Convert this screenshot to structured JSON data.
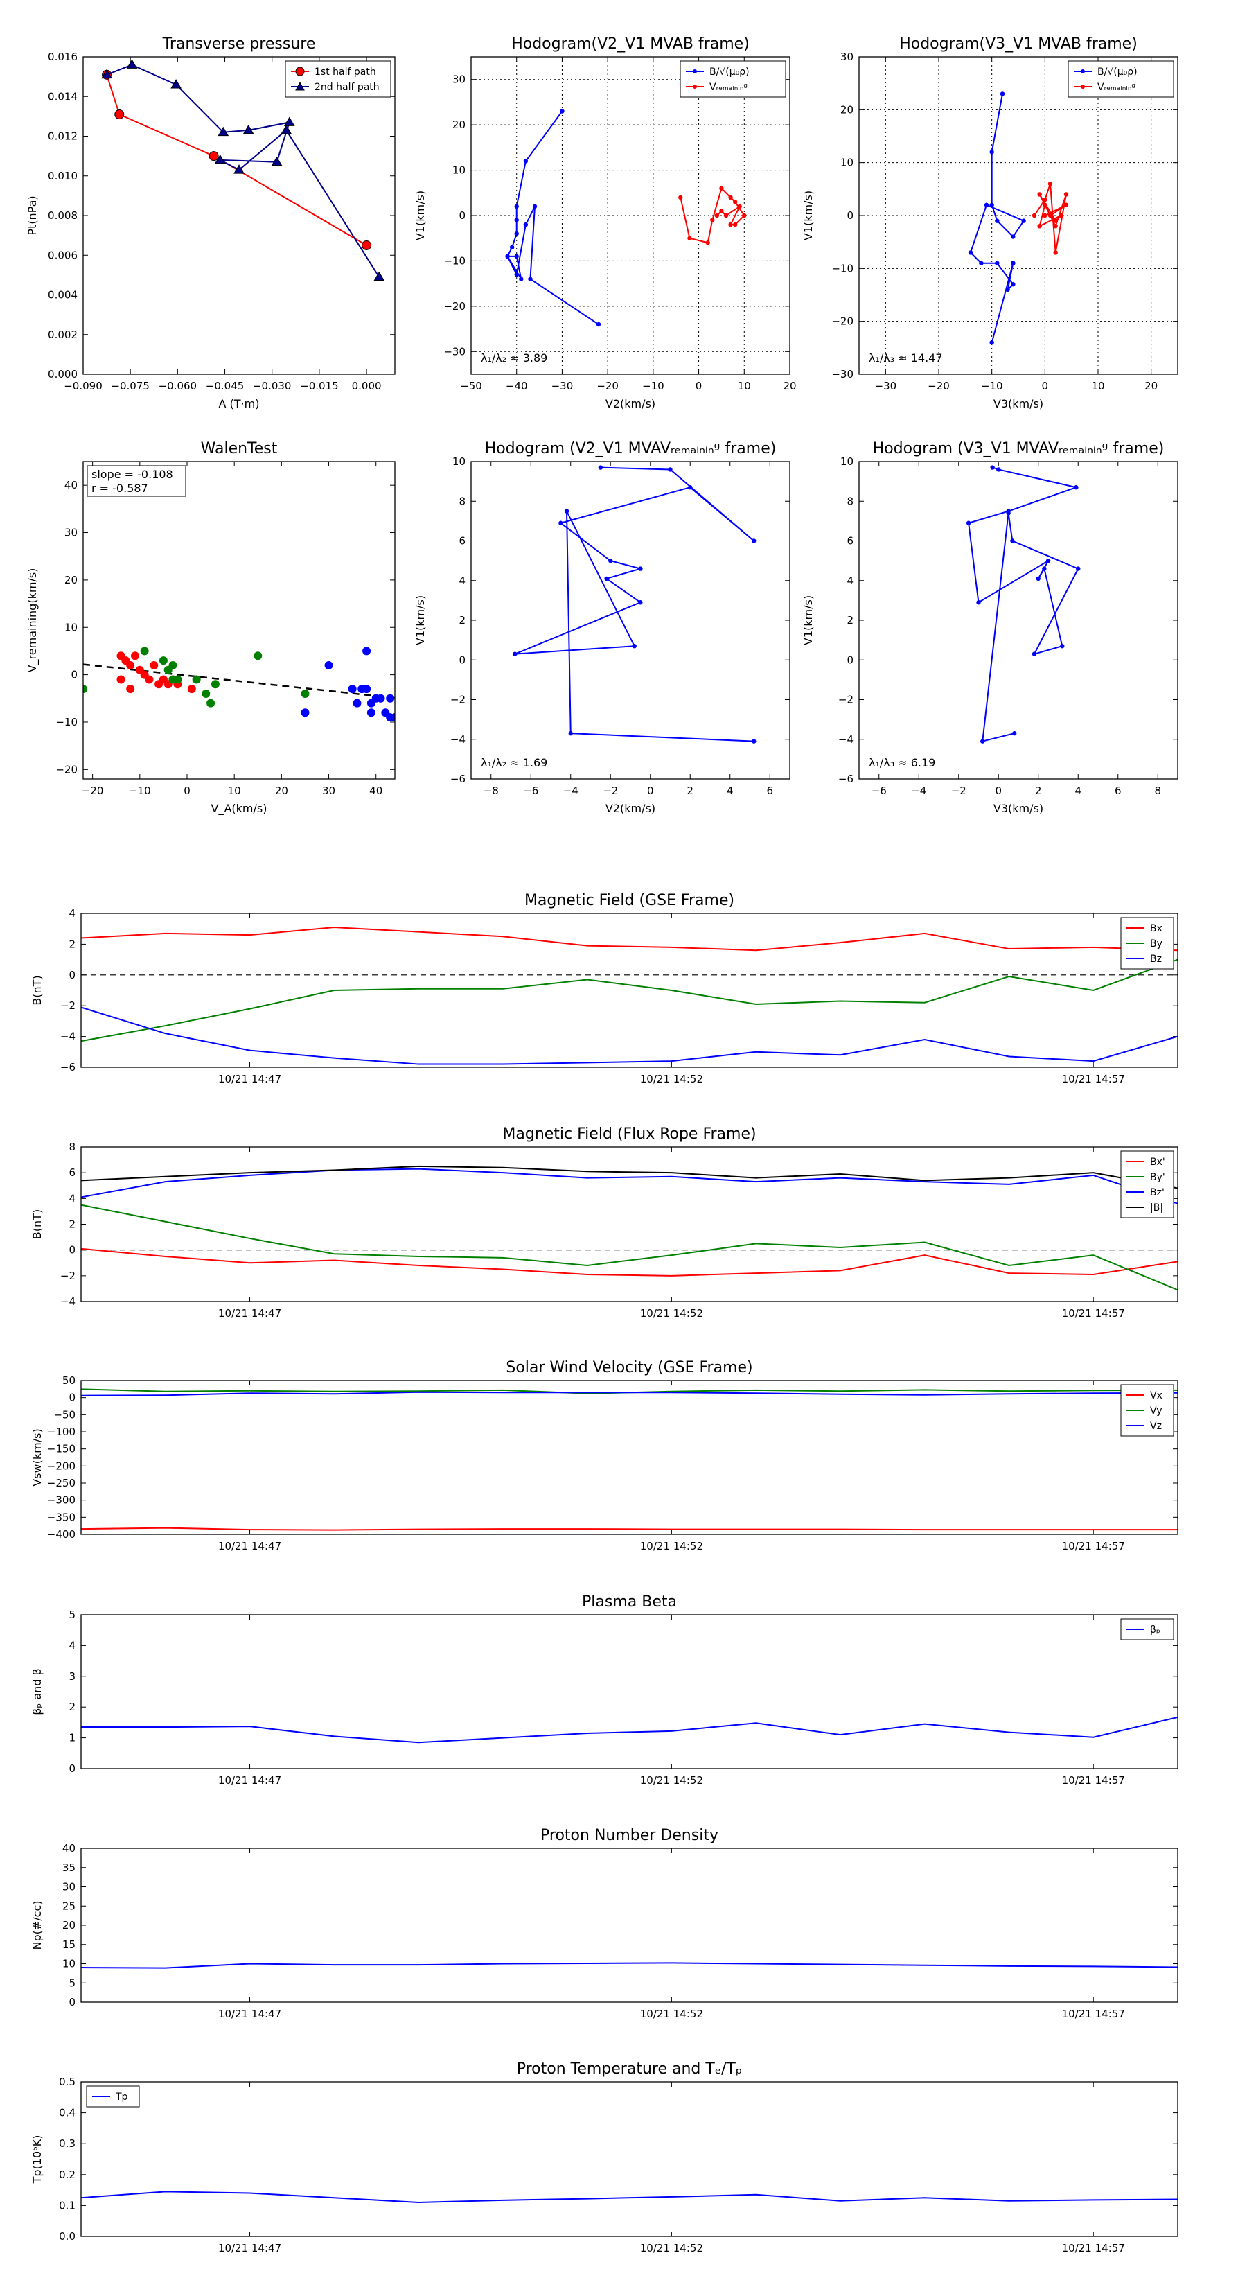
{
  "chart_data": [
    {
      "id": "transverse_pressure",
      "type": "line",
      "title": "Transverse pressure",
      "xlabel": "A (T·m)",
      "ylabel": "Pt(nPa)",
      "xlim": [
        -0.09,
        0.009
      ],
      "ylim": [
        0,
        0.016
      ],
      "xticks": [
        -0.09,
        -0.075,
        -0.06,
        -0.045,
        -0.03,
        -0.015,
        0.0
      ],
      "xtick_labels": [
        "−0.090",
        "−0.075",
        "−0.060",
        "−0.045",
        "−0.030",
        "−0.015",
        "0.000"
      ],
      "yticks": [
        0,
        0.002,
        0.004,
        0.006,
        0.008,
        0.01,
        0.012,
        0.014,
        0.016
      ],
      "ytick_labels": [
        "0.000",
        "0.002",
        "0.004",
        "0.006",
        "0.008",
        "0.010",
        "0.012",
        "0.014",
        "0.016"
      ],
      "grid": false,
      "legend": "top-right",
      "series": [
        {
          "name": "1st half path",
          "color": "#ff0000",
          "marker": "circle",
          "x": [
            -0.0825,
            -0.0785,
            -0.0485,
            0.0
          ],
          "y": [
            0.0151,
            0.0131,
            0.011,
            0.0065
          ]
        },
        {
          "name": "2nd half path",
          "color": "#00008b",
          "marker": "triangle",
          "x": [
            -0.0825,
            -0.0745,
            -0.0605,
            -0.0455,
            -0.0375,
            -0.0245,
            -0.0285,
            -0.0465,
            -0.0405,
            -0.0255,
            0.004
          ],
          "y": [
            0.0151,
            0.0156,
            0.0146,
            0.0122,
            0.0123,
            0.0127,
            0.0107,
            0.0108,
            0.0103,
            0.0123,
            0.0049
          ]
        }
      ]
    },
    {
      "id": "hodogram_v2v1",
      "type": "line",
      "title": "Hodogram(V2_V1 MVAB frame)",
      "xlabel": "V2(km/s)",
      "ylabel": "V1(km/s)",
      "xlim": [
        -50,
        20
      ],
      "ylim": [
        -35,
        35
      ],
      "xticks": [
        -50,
        -40,
        -30,
        -20,
        -10,
        0,
        10,
        20
      ],
      "yticks": [
        -30,
        -20,
        -10,
        0,
        10,
        20,
        30
      ],
      "grid": true,
      "legend": "top-right",
      "annotation": "λ₁/λ₂ ≈ 3.89",
      "series": [
        {
          "name": "B/√(μ₀ρ)",
          "color": "#0000ff",
          "x": [
            -30,
            -38,
            -40,
            -40,
            -40,
            -41,
            -42,
            -39,
            -40,
            -42,
            -40,
            -38,
            -36,
            -37,
            -22
          ],
          "y": [
            23,
            12,
            2,
            -1,
            -4,
            -7,
            -9,
            -14,
            -9,
            -9,
            -13,
            -2,
            2,
            -14,
            -24
          ]
        },
        {
          "name": "Vᵣₑₘₐᵢₙᵢₙᵍ",
          "color": "#ff0000",
          "x": [
            -4,
            -2,
            2,
            3,
            5,
            7,
            8,
            10,
            8,
            7,
            9,
            6,
            5,
            4
          ],
          "y": [
            4,
            -5,
            -6,
            -1,
            6,
            4,
            3,
            0,
            -2,
            -2,
            2,
            0,
            1,
            0
          ]
        }
      ]
    },
    {
      "id": "hodogram_v3v1",
      "type": "line",
      "title": "Hodogram(V3_V1 MVAB frame)",
      "xlabel": "V3(km/s)",
      "ylabel": "V1(km/s)",
      "xlim": [
        -35,
        25
      ],
      "ylim": [
        -30,
        30
      ],
      "xticks": [
        -30,
        -20,
        -10,
        0,
        10,
        20
      ],
      "yticks": [
        -30,
        -20,
        -10,
        0,
        10,
        20,
        30
      ],
      "grid": true,
      "legend": "top-right",
      "annotation": "λ₁/λ₃ ≈ 14.47",
      "series": [
        {
          "name": "B/√(μ₀ρ)",
          "color": "#0000ff",
          "x": [
            -8,
            -10,
            -10,
            -9,
            -6,
            -4,
            -11,
            -14,
            -12,
            -9,
            -6,
            -7,
            -6,
            -6,
            -10
          ],
          "y": [
            23,
            12,
            2,
            -1,
            -4,
            -1,
            2,
            -7,
            -9,
            -9,
            -13,
            -14,
            -9,
            -9,
            -24
          ]
        },
        {
          "name": "Vᵣₑₘₐᵢₙᵢₙᵍ",
          "color": "#ff0000",
          "x": [
            -2,
            0,
            1,
            2,
            4,
            2,
            0,
            -1,
            3,
            2,
            -1,
            1,
            4,
            0
          ],
          "y": [
            0,
            3,
            6,
            -7,
            4,
            -2,
            2,
            -2,
            0,
            -1,
            4,
            0,
            2,
            0
          ]
        }
      ]
    },
    {
      "id": "walen_test",
      "type": "scatter",
      "title": "WalenTest",
      "xlabel": "V_A(km/s)",
      "ylabel": "V_remaining(km/s)",
      "xlim": [
        -22,
        44
      ],
      "ylim": [
        -22,
        45
      ],
      "xticks": [
        -20,
        -10,
        0,
        10,
        20,
        30,
        40
      ],
      "yticks": [
        -20,
        -10,
        0,
        10,
        20,
        30,
        40
      ],
      "grid": false,
      "annotation_lines": [
        "slope = -0.108",
        "r = -0.587"
      ],
      "fit_line": {
        "slope": -0.108,
        "x": [
          -22,
          44
        ],
        "y": [
          2.2,
          -4.9
        ],
        "color": "#000000",
        "style": "dashed"
      },
      "groups": [
        {
          "color": "#ff0000",
          "x": [
            -14,
            -13,
            -12,
            -11,
            -10,
            -9,
            -8,
            -7,
            -6,
            -5,
            -4,
            -3,
            -2,
            1,
            -14,
            -12
          ],
          "y": [
            4,
            3,
            2,
            4,
            1,
            0,
            -1,
            2,
            -2,
            -1,
            -2,
            -1,
            -2,
            -3,
            -1,
            -3
          ]
        },
        {
          "color": "#008000",
          "x": [
            -9,
            -5,
            -4,
            -3,
            -3,
            -2,
            2,
            4,
            5,
            6,
            15,
            25,
            -22
          ],
          "y": [
            5,
            3,
            1,
            2,
            -1,
            -1,
            -1,
            -4,
            -6,
            -2,
            4,
            -4,
            -3
          ]
        },
        {
          "color": "#0000ff",
          "x": [
            25,
            30,
            35,
            36,
            37,
            38,
            38,
            39,
            39,
            40,
            41,
            42,
            43,
            43,
            44
          ],
          "y": [
            -8,
            2,
            -3,
            -6,
            -3,
            5,
            -3,
            -6,
            -8,
            -5,
            -5,
            -8,
            -5,
            -9,
            -9
          ]
        }
      ]
    },
    {
      "id": "hodogram_v2v1_rem",
      "type": "line",
      "title": "Hodogram (V2_V1 MVAVᵣₑₘₐᵢₙᵢₙᵍ frame)",
      "xlabel": "V2(km/s)",
      "ylabel": "V1(km/s)",
      "xlim": [
        -9,
        7
      ],
      "ylim": [
        -6,
        10
      ],
      "xticks": [
        -8,
        -6,
        -4,
        -2,
        0,
        2,
        4,
        6
      ],
      "yticks": [
        -6,
        -4,
        -2,
        0,
        2,
        4,
        6,
        8,
        10
      ],
      "grid": false,
      "annotation": "λ₁/λ₂ ≈ 1.69",
      "series": [
        {
          "color": "#0000ff",
          "x": [
            -2.5,
            1.0,
            5.2,
            2.0,
            -4.5,
            -2.0,
            -0.5,
            -2.2,
            -0.5,
            -6.8,
            -0.8,
            -4.2,
            -4.0,
            5.2
          ],
          "y": [
            9.7,
            9.6,
            6.0,
            8.7,
            6.9,
            5.0,
            4.6,
            4.1,
            2.9,
            0.3,
            0.7,
            7.5,
            -3.7,
            -4.1
          ]
        }
      ]
    },
    {
      "id": "hodogram_v3v1_rem",
      "type": "line",
      "title": "Hodogram (V3_V1 MVAVᵣₑₘₐᵢₙᵢₙᵍ frame)",
      "xlabel": "V3(km/s)",
      "ylabel": "V1(km/s)",
      "xlim": [
        -7,
        9
      ],
      "ylim": [
        -6,
        10
      ],
      "xticks": [
        -6,
        -4,
        -2,
        0,
        2,
        4,
        6,
        8
      ],
      "yticks": [
        -6,
        -4,
        -2,
        0,
        2,
        4,
        6,
        8,
        10
      ],
      "grid": false,
      "annotation": "λ₁/λ₃ ≈ 6.19",
      "series": [
        {
          "color": "#0000ff",
          "x": [
            -0.3,
            0.0,
            3.9,
            0.5,
            -1.5,
            -1.0,
            2.5,
            2.0,
            2.3,
            3.2,
            1.8,
            4.0,
            0.7,
            0.5,
            -0.8,
            0.8
          ],
          "y": [
            9.7,
            9.6,
            8.7,
            7.5,
            6.9,
            2.9,
            5.0,
            4.1,
            4.6,
            0.7,
            0.3,
            4.6,
            6.0,
            7.4,
            -4.1,
            -3.7
          ]
        }
      ]
    },
    {
      "id": "mag_gse",
      "type": "line",
      "title": "Magnetic Field (GSE Frame)",
      "ylabel": "B(nT)",
      "ylim": [
        -6,
        4
      ],
      "yticks": [
        -6,
        -4,
        -2,
        0,
        2,
        4
      ],
      "x_tick_labels": [
        "10/21 14:47",
        "10/21 14:52",
        "10/21 14:57"
      ],
      "x_tick_positions_minutes": [
        2,
        7,
        12
      ],
      "x_range_minutes": [
        0,
        13
      ],
      "zero_line": true,
      "legend": "top-right",
      "series": [
        {
          "name": "Bx",
          "color": "#ff0000",
          "values": [
            2.4,
            2.7,
            2.6,
            3.1,
            2.8,
            2.5,
            1.9,
            1.8,
            1.6,
            2.1,
            2.7,
            1.7,
            1.8,
            1.6
          ]
        },
        {
          "name": "By",
          "color": "#008000",
          "values": [
            -4.3,
            -3.3,
            -2.2,
            -1.0,
            -0.9,
            -0.9,
            -0.3,
            -1.0,
            -1.9,
            -1.7,
            -1.8,
            -0.1,
            -1.0,
            1.0
          ]
        },
        {
          "name": "Bz",
          "color": "#0000ff",
          "values": [
            -2.1,
            -3.8,
            -4.9,
            -5.4,
            -5.8,
            -5.8,
            -5.7,
            -5.6,
            -5.0,
            -5.2,
            -4.2,
            -5.3,
            -5.6,
            -4.0
          ]
        }
      ]
    },
    {
      "id": "mag_fluxrope",
      "type": "line",
      "title": "Magnetic Field (Flux Rope Frame)",
      "ylabel": "B(nT)",
      "ylim": [
        -4,
        8
      ],
      "yticks": [
        -4,
        -2,
        0,
        2,
        4,
        6,
        8
      ],
      "x_tick_labels": [
        "10/21 14:47",
        "10/21 14:52",
        "10/21 14:57"
      ],
      "x_tick_positions_minutes": [
        2,
        7,
        12
      ],
      "x_range_minutes": [
        0,
        13
      ],
      "zero_line": true,
      "legend": "top-right",
      "series": [
        {
          "name": "Bx'",
          "color": "#ff0000",
          "values": [
            0.1,
            -0.5,
            -1.0,
            -0.8,
            -1.2,
            -1.5,
            -1.9,
            -2.0,
            -1.8,
            -1.6,
            -0.4,
            -1.8,
            -1.9,
            -0.9
          ]
        },
        {
          "name": "By'",
          "color": "#008000",
          "values": [
            3.5,
            2.2,
            0.9,
            -0.3,
            -0.5,
            -0.6,
            -1.2,
            -0.4,
            0.5,
            0.2,
            0.6,
            -1.2,
            -0.4,
            -3.1
          ]
        },
        {
          "name": "Bz'",
          "color": "#0000ff",
          "values": [
            4.1,
            5.3,
            5.8,
            6.2,
            6.3,
            6.0,
            5.6,
            5.7,
            5.3,
            5.6,
            5.3,
            5.1,
            5.8,
            3.6
          ]
        },
        {
          "name": "|B|",
          "color": "#000000",
          "values": [
            5.4,
            5.7,
            6.0,
            6.2,
            6.5,
            6.4,
            6.1,
            6.0,
            5.6,
            5.9,
            5.4,
            5.6,
            6.0,
            4.8
          ]
        }
      ]
    },
    {
      "id": "sw_velocity",
      "type": "line",
      "title": "Solar Wind Velocity (GSE Frame)",
      "ylabel": "Vsw(km/s)",
      "ylim": [
        -400,
        50
      ],
      "yticks": [
        -400,
        -350,
        -300,
        -250,
        -200,
        -150,
        -100,
        -50,
        0,
        50
      ],
      "x_tick_labels": [
        "10/21 14:47",
        "10/21 14:52",
        "10/21 14:57"
      ],
      "x_tick_positions_minutes": [
        2,
        7,
        12
      ],
      "x_range_minutes": [
        0,
        13
      ],
      "legend": "top-right",
      "series": [
        {
          "name": "Vx",
          "color": "#ff0000",
          "values": [
            -384,
            -381,
            -386,
            -387,
            -385,
            -384,
            -384,
            -385,
            -385,
            -385,
            -386,
            -386,
            -386,
            -386
          ]
        },
        {
          "name": "Vy",
          "color": "#008000",
          "values": [
            25,
            18,
            20,
            18,
            19,
            22,
            12,
            18,
            22,
            19,
            23,
            19,
            21,
            22
          ]
        },
        {
          "name": "Vz",
          "color": "#0000ff",
          "values": [
            6,
            7,
            13,
            11,
            16,
            15,
            15,
            15,
            13,
            10,
            8,
            11,
            13,
            14
          ]
        }
      ]
    },
    {
      "id": "plasma_beta",
      "type": "line",
      "title": "Plasma Beta",
      "ylabel": "βₚ and β",
      "ylim": [
        0,
        5
      ],
      "yticks": [
        0,
        1,
        2,
        3,
        4,
        5
      ],
      "x_tick_labels": [
        "10/21 14:47",
        "10/21 14:52",
        "10/21 14:57"
      ],
      "x_tick_positions_minutes": [
        2,
        7,
        12
      ],
      "x_range_minutes": [
        0,
        13
      ],
      "legend": "top-right",
      "series": [
        {
          "name": "βₚ",
          "color": "#0000ff",
          "values": [
            1.35,
            1.35,
            1.37,
            1.05,
            0.85,
            1.0,
            1.15,
            1.22,
            1.48,
            1.1,
            1.45,
            1.18,
            1.02,
            1.67
          ]
        }
      ]
    },
    {
      "id": "proton_density",
      "type": "line",
      "title": "Proton Number Density",
      "ylabel": "Np(#/cc)",
      "ylim": [
        0,
        40
      ],
      "yticks": [
        0,
        5,
        10,
        15,
        20,
        25,
        30,
        35,
        40
      ],
      "x_tick_labels": [
        "10/21 14:47",
        "10/21 14:52",
        "10/21 14:57"
      ],
      "x_tick_positions_minutes": [
        2,
        7,
        12
      ],
      "x_range_minutes": [
        0,
        13
      ],
      "series": [
        {
          "name": "Np",
          "color": "#0000ff",
          "values": [
            9.0,
            8.9,
            10.0,
            9.7,
            9.7,
            10.0,
            10.1,
            10.2,
            10.0,
            9.8,
            9.6,
            9.4,
            9.3,
            9.1
          ]
        }
      ]
    },
    {
      "id": "proton_temperature",
      "type": "line",
      "title": "Proton Temperature and Tₑ/Tₚ",
      "ylabel": "Tp(10⁶K)",
      "ylim": [
        0,
        0.5
      ],
      "yticks": [
        0.0,
        0.1,
        0.2,
        0.3,
        0.4,
        0.5
      ],
      "ytick_labels": [
        "0.0",
        "0.1",
        "0.2",
        "0.3",
        "0.4",
        "0.5"
      ],
      "x_tick_labels": [
        "10/21 14:47",
        "10/21 14:52",
        "10/21 14:57"
      ],
      "x_tick_positions_minutes": [
        2,
        7,
        12
      ],
      "x_range_minutes": [
        0,
        13
      ],
      "legend": "top-left",
      "series": [
        {
          "name": "Tp",
          "color": "#0000ff",
          "values": [
            0.125,
            0.145,
            0.14,
            0.125,
            0.11,
            0.117,
            0.122,
            0.128,
            0.135,
            0.115,
            0.125,
            0.115,
            0.118,
            0.12
          ]
        }
      ]
    }
  ]
}
